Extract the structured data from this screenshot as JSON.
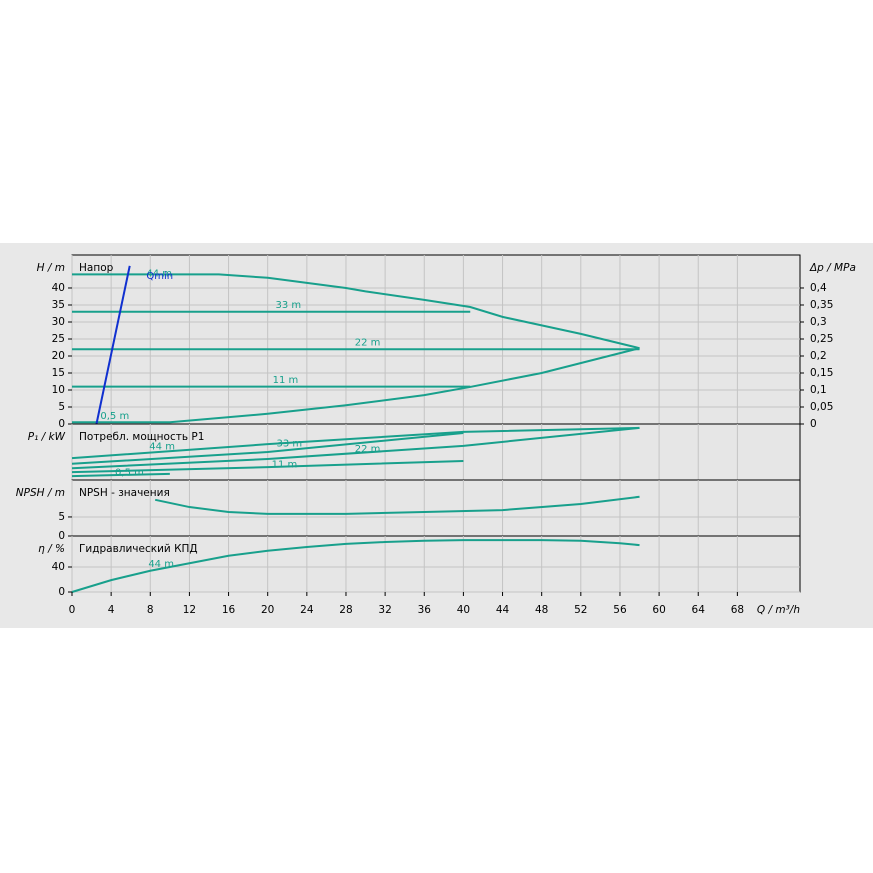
{
  "chart_data": [
    {
      "type": "line",
      "title": "Напор",
      "ylabel": "H / m",
      "ylim": [
        0,
        49.7
      ],
      "yticks": [
        0,
        5,
        10,
        15,
        20,
        25,
        30,
        35,
        40
      ],
      "y2label": "Δp / MPa",
      "y2lim": [
        0,
        0.497
      ],
      "y2ticks": [
        0,
        {
          "value": 0.05,
          "label": "0,05"
        },
        {
          "value": 0.1,
          "label": "0,1"
        },
        {
          "value": 0.15,
          "label": "0,15"
        },
        {
          "value": 0.2,
          "label": "0,2"
        },
        {
          "value": 0.25,
          "label": "0,25"
        },
        {
          "value": 0.3,
          "label": "0,3"
        },
        {
          "value": 0.35,
          "label": "0,35"
        },
        {
          "value": 0.4,
          "label": "0,4"
        }
      ],
      "grid": true,
      "series": [
        {
          "name": "44 m",
          "color": "#18a08c",
          "x": [
            0,
            15,
            20,
            28,
            30,
            36,
            40.7,
            44,
            48,
            52,
            58
          ],
          "values": [
            44,
            44,
            43,
            40,
            39,
            36.5,
            34.4,
            31.5,
            29,
            26.5,
            22.3
          ]
        },
        {
          "name": "0,5 m",
          "color": "#18a08c",
          "x": [
            0,
            10,
            20,
            28,
            36,
            40.7,
            48,
            58
          ],
          "values": [
            0.5,
            0.5,
            3,
            5.5,
            8.5,
            10.9,
            15,
            22.3
          ]
        },
        {
          "name": "33 m",
          "color": "#18a08c",
          "x": [
            0,
            40.7
          ],
          "values": [
            33,
            33
          ]
        },
        {
          "name": "22 m",
          "color": "#18a08c",
          "x": [
            0,
            58
          ],
          "values": [
            22,
            22
          ]
        },
        {
          "name": "11 m",
          "color": "#18a08c",
          "x": [
            0,
            40.7
          ],
          "values": [
            11,
            11
          ]
        },
        {
          "name": "Qmin",
          "color": "#1030d0",
          "x": [
            2.5,
            5.9
          ],
          "values": [
            0,
            46.5
          ]
        }
      ]
    },
    {
      "type": "line",
      "title": "Потребл. мощность P1",
      "ylabel": "P₁ / kW",
      "ylim": [
        0,
        10
      ],
      "grid": true,
      "series": [
        {
          "name": "44 m",
          "color": "#18a08c",
          "x": [
            0,
            20,
            40,
            58
          ],
          "values": [
            3.9,
            6.4,
            8.6,
            9.3
          ]
        },
        {
          "name": "33 m",
          "color": "#18a08c",
          "x": [
            0,
            20,
            40
          ],
          "values": [
            2.9,
            5,
            8.4
          ]
        },
        {
          "name": "22 m",
          "color": "#18a08c",
          "x": [
            0,
            20,
            40,
            58
          ],
          "values": [
            2.1,
            3.75,
            6.1,
            9.3
          ]
        },
        {
          "name": "11 m",
          "color": "#18a08c",
          "x": [
            0,
            20,
            40
          ],
          "values": [
            1.4,
            2.3,
            3.4
          ]
        },
        {
          "name": "0,5 m",
          "color": "#18a08c",
          "x": [
            0,
            10
          ],
          "values": [
            0.7,
            1.1
          ]
        }
      ]
    },
    {
      "type": "line",
      "title": "NPSH - значения",
      "ylabel": "NPSH / m",
      "ylim": [
        0,
        14.7
      ],
      "yticks": [
        0,
        5
      ],
      "grid": true,
      "series": [
        {
          "color": "#18a08c",
          "x": [
            8.5,
            12,
            16,
            20,
            28,
            36,
            44,
            52,
            58
          ],
          "values": [
            9.5,
            7.6,
            6.3,
            5.8,
            5.8,
            6.3,
            6.8,
            8.4,
            10.3
          ]
        }
      ]
    },
    {
      "type": "line",
      "title": "Гидравлический КПД",
      "ylabel": "η / %",
      "ylim": [
        0,
        89.6
      ],
      "yticks": [
        0,
        40
      ],
      "grid": true,
      "xlabel": "Q / m³/h",
      "xlim": [
        0,
        74.4
      ],
      "xticks": [
        0,
        4,
        8,
        12,
        16,
        20,
        24,
        28,
        32,
        36,
        40,
        44,
        48,
        52,
        56,
        60,
        64,
        68
      ],
      "series": [
        {
          "name": "44 m",
          "color": "#18a08c",
          "x": [
            0,
            4,
            8,
            12,
            16,
            20,
            24,
            28,
            32,
            36,
            40,
            48,
            52,
            56,
            58
          ],
          "values": [
            0,
            19,
            34,
            46,
            58,
            66,
            72,
            77,
            80,
            82,
            83,
            83,
            82,
            78,
            75
          ]
        }
      ]
    }
  ]
}
